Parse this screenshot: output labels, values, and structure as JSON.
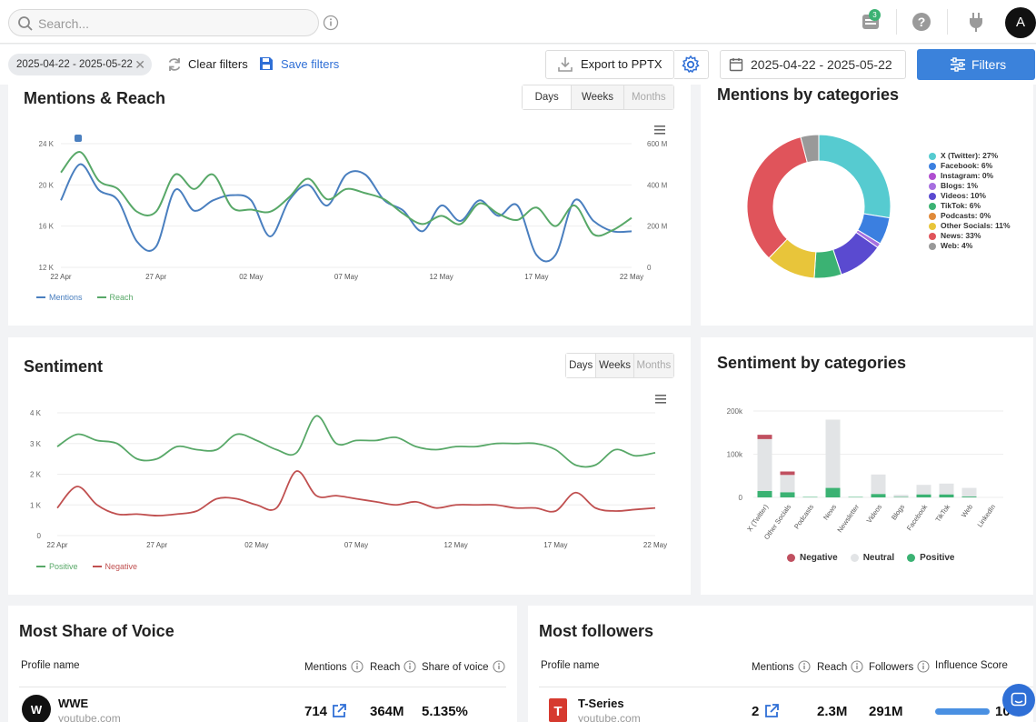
{
  "header": {
    "search_placeholder": "Search...",
    "notification_count": "3",
    "avatar_letter": "A"
  },
  "filterbar": {
    "date_chip": "2025-04-22 - 2025-05-22",
    "clear_filters": "Clear filters",
    "save_filters": "Save filters",
    "export": "Export to PPTX",
    "date_range": "2025-04-22 - 2025-05-22",
    "filters": "Filters"
  },
  "mentions_reach": {
    "title": "Mentions & Reach",
    "tabs": [
      "Days",
      "Weeks",
      "Months"
    ],
    "legend": [
      "Mentions",
      "Reach"
    ]
  },
  "mentions_by_categories": {
    "title": "Mentions by categories",
    "legend": [
      "X (Twitter): 27%",
      "Facebook: 6%",
      "Instagram: 0%",
      "Blogs: 1%",
      "Videos: 10%",
      "TikTok: 6%",
      "Podcasts: 0%",
      "Other Socials: 11%",
      "News: 33%",
      "Web: 4%"
    ]
  },
  "sentiment": {
    "title": "Sentiment",
    "tabs": [
      "Days",
      "Weeks",
      "Months"
    ],
    "legend": [
      "Positive",
      "Negative"
    ]
  },
  "sentiment_by_categories": {
    "title": "Sentiment by categories",
    "legend": [
      "Negative",
      "Neutral",
      "Positive"
    ]
  },
  "share_of_voice": {
    "title": "Most Share of Voice",
    "headers": [
      "Profile name",
      "Mentions",
      "Reach",
      "Share of voice"
    ],
    "rows": [
      {
        "name": "WWE",
        "source": "youtube.com",
        "mentions": "714",
        "reach": "364M",
        "share": "5.135%"
      }
    ]
  },
  "followers": {
    "title": "Most followers",
    "headers": [
      "Profile name",
      "Mentions",
      "Reach",
      "Followers",
      "Influence Score"
    ],
    "rows": [
      {
        "name": "T-Series",
        "source": "youtube.com",
        "mentions": "2",
        "reach": "2.3M",
        "followers": "291M",
        "score": "10"
      }
    ]
  },
  "chart_data": [
    {
      "type": "line",
      "x_ticks": [
        "22 Apr",
        "27 Apr",
        "02 May",
        "07 May",
        "12 May",
        "17 May",
        "22 May"
      ],
      "y_ticks_left": [
        "12 K",
        "16 K",
        "20 K",
        "24 K"
      ],
      "y_ticks_right": [
        "0",
        "200 M",
        "400 M",
        "600 M"
      ],
      "ylim_left": [
        12000,
        24000
      ],
      "ylim_right": [
        0,
        600000000
      ],
      "series": [
        {
          "name": "Mentions",
          "axis": "left",
          "color": "#4a7fbf",
          "values": [
            18500,
            22000,
            19500,
            18500,
            14500,
            14000,
            19500,
            17500,
            18500,
            19000,
            18500,
            15000,
            18500,
            20000,
            18000,
            21000,
            21000,
            18500,
            17500,
            15500,
            18000,
            16500,
            18500,
            17000,
            18000,
            13200,
            13200,
            18500,
            16500,
            15500,
            15500
          ]
        },
        {
          "name": "Reach",
          "axis": "right",
          "color": "#58a868",
          "values": [
            460000000,
            560000000,
            420000000,
            380000000,
            270000000,
            270000000,
            450000000,
            380000000,
            450000000,
            290000000,
            280000000,
            270000000,
            340000000,
            430000000,
            330000000,
            380000000,
            360000000,
            330000000,
            260000000,
            210000000,
            250000000,
            210000000,
            310000000,
            260000000,
            230000000,
            290000000,
            200000000,
            300000000,
            160000000,
            180000000,
            240000000
          ]
        }
      ]
    },
    {
      "type": "pie",
      "labels": [
        "X (Twitter)",
        "Facebook",
        "Instagram",
        "Blogs",
        "Videos",
        "TikTok",
        "Podcasts",
        "Other Socials",
        "News",
        "Web"
      ],
      "values": [
        27,
        6,
        0,
        1,
        10,
        6,
        0,
        11,
        33,
        4
      ],
      "colors": [
        "#56cbd0",
        "#3b7fe0",
        "#b04ed0",
        "#a76fe0",
        "#5a4ad0",
        "#3bb273",
        "#e08a3a",
        "#e8c53a",
        "#e0545b",
        "#999999"
      ]
    },
    {
      "type": "line",
      "x_ticks": [
        "22 Apr",
        "27 Apr",
        "02 May",
        "07 May",
        "12 May",
        "17 May",
        "22 May"
      ],
      "y_ticks": [
        "0",
        "1 K",
        "2 K",
        "3 K",
        "4 K"
      ],
      "ylim": [
        0,
        4000
      ],
      "series": [
        {
          "name": "Positive",
          "color": "#58a868",
          "values": [
            2900,
            3300,
            3100,
            3000,
            2500,
            2500,
            2900,
            2800,
            2800,
            3300,
            3100,
            2800,
            2700,
            3900,
            3000,
            3100,
            3100,
            3200,
            2900,
            2800,
            2900,
            2900,
            3000,
            3000,
            3000,
            2800,
            2300,
            2300,
            2800,
            2600,
            2700
          ]
        },
        {
          "name": "Negative",
          "color": "#c05050",
          "values": [
            900,
            1600,
            1000,
            700,
            700,
            650,
            700,
            800,
            1200,
            1200,
            1000,
            900,
            2100,
            1300,
            1300,
            1200,
            1100,
            1000,
            1100,
            900,
            1000,
            1000,
            1000,
            900,
            900,
            800,
            1400,
            900,
            800,
            850,
            900
          ]
        }
      ]
    },
    {
      "type": "bar",
      "stacked": true,
      "categories": [
        "X (Twitter)",
        "Other Socials",
        "Podcasts",
        "News",
        "Newsletter",
        "Videos",
        "Blogs",
        "Facebook",
        "TikTok",
        "Web",
        "LinkedIn"
      ],
      "y_ticks": [
        "0",
        "100k",
        "200k"
      ],
      "ylim": [
        0,
        200000
      ],
      "series": [
        {
          "name": "Negative",
          "color": "#c05060",
          "values": [
            10000,
            8000,
            0,
            0,
            0,
            0,
            0,
            0,
            0,
            0,
            0
          ]
        },
        {
          "name": "Neutral",
          "color": "#e2e4e6",
          "values": [
            120000,
            40000,
            0,
            158000,
            0,
            45000,
            5000,
            22000,
            25000,
            20000,
            0
          ]
        },
        {
          "name": "Positive",
          "color": "#3bb273",
          "values": [
            15000,
            12000,
            1000,
            22000,
            1000,
            8000,
            1000,
            7000,
            7000,
            2000,
            0
          ]
        }
      ]
    }
  ]
}
